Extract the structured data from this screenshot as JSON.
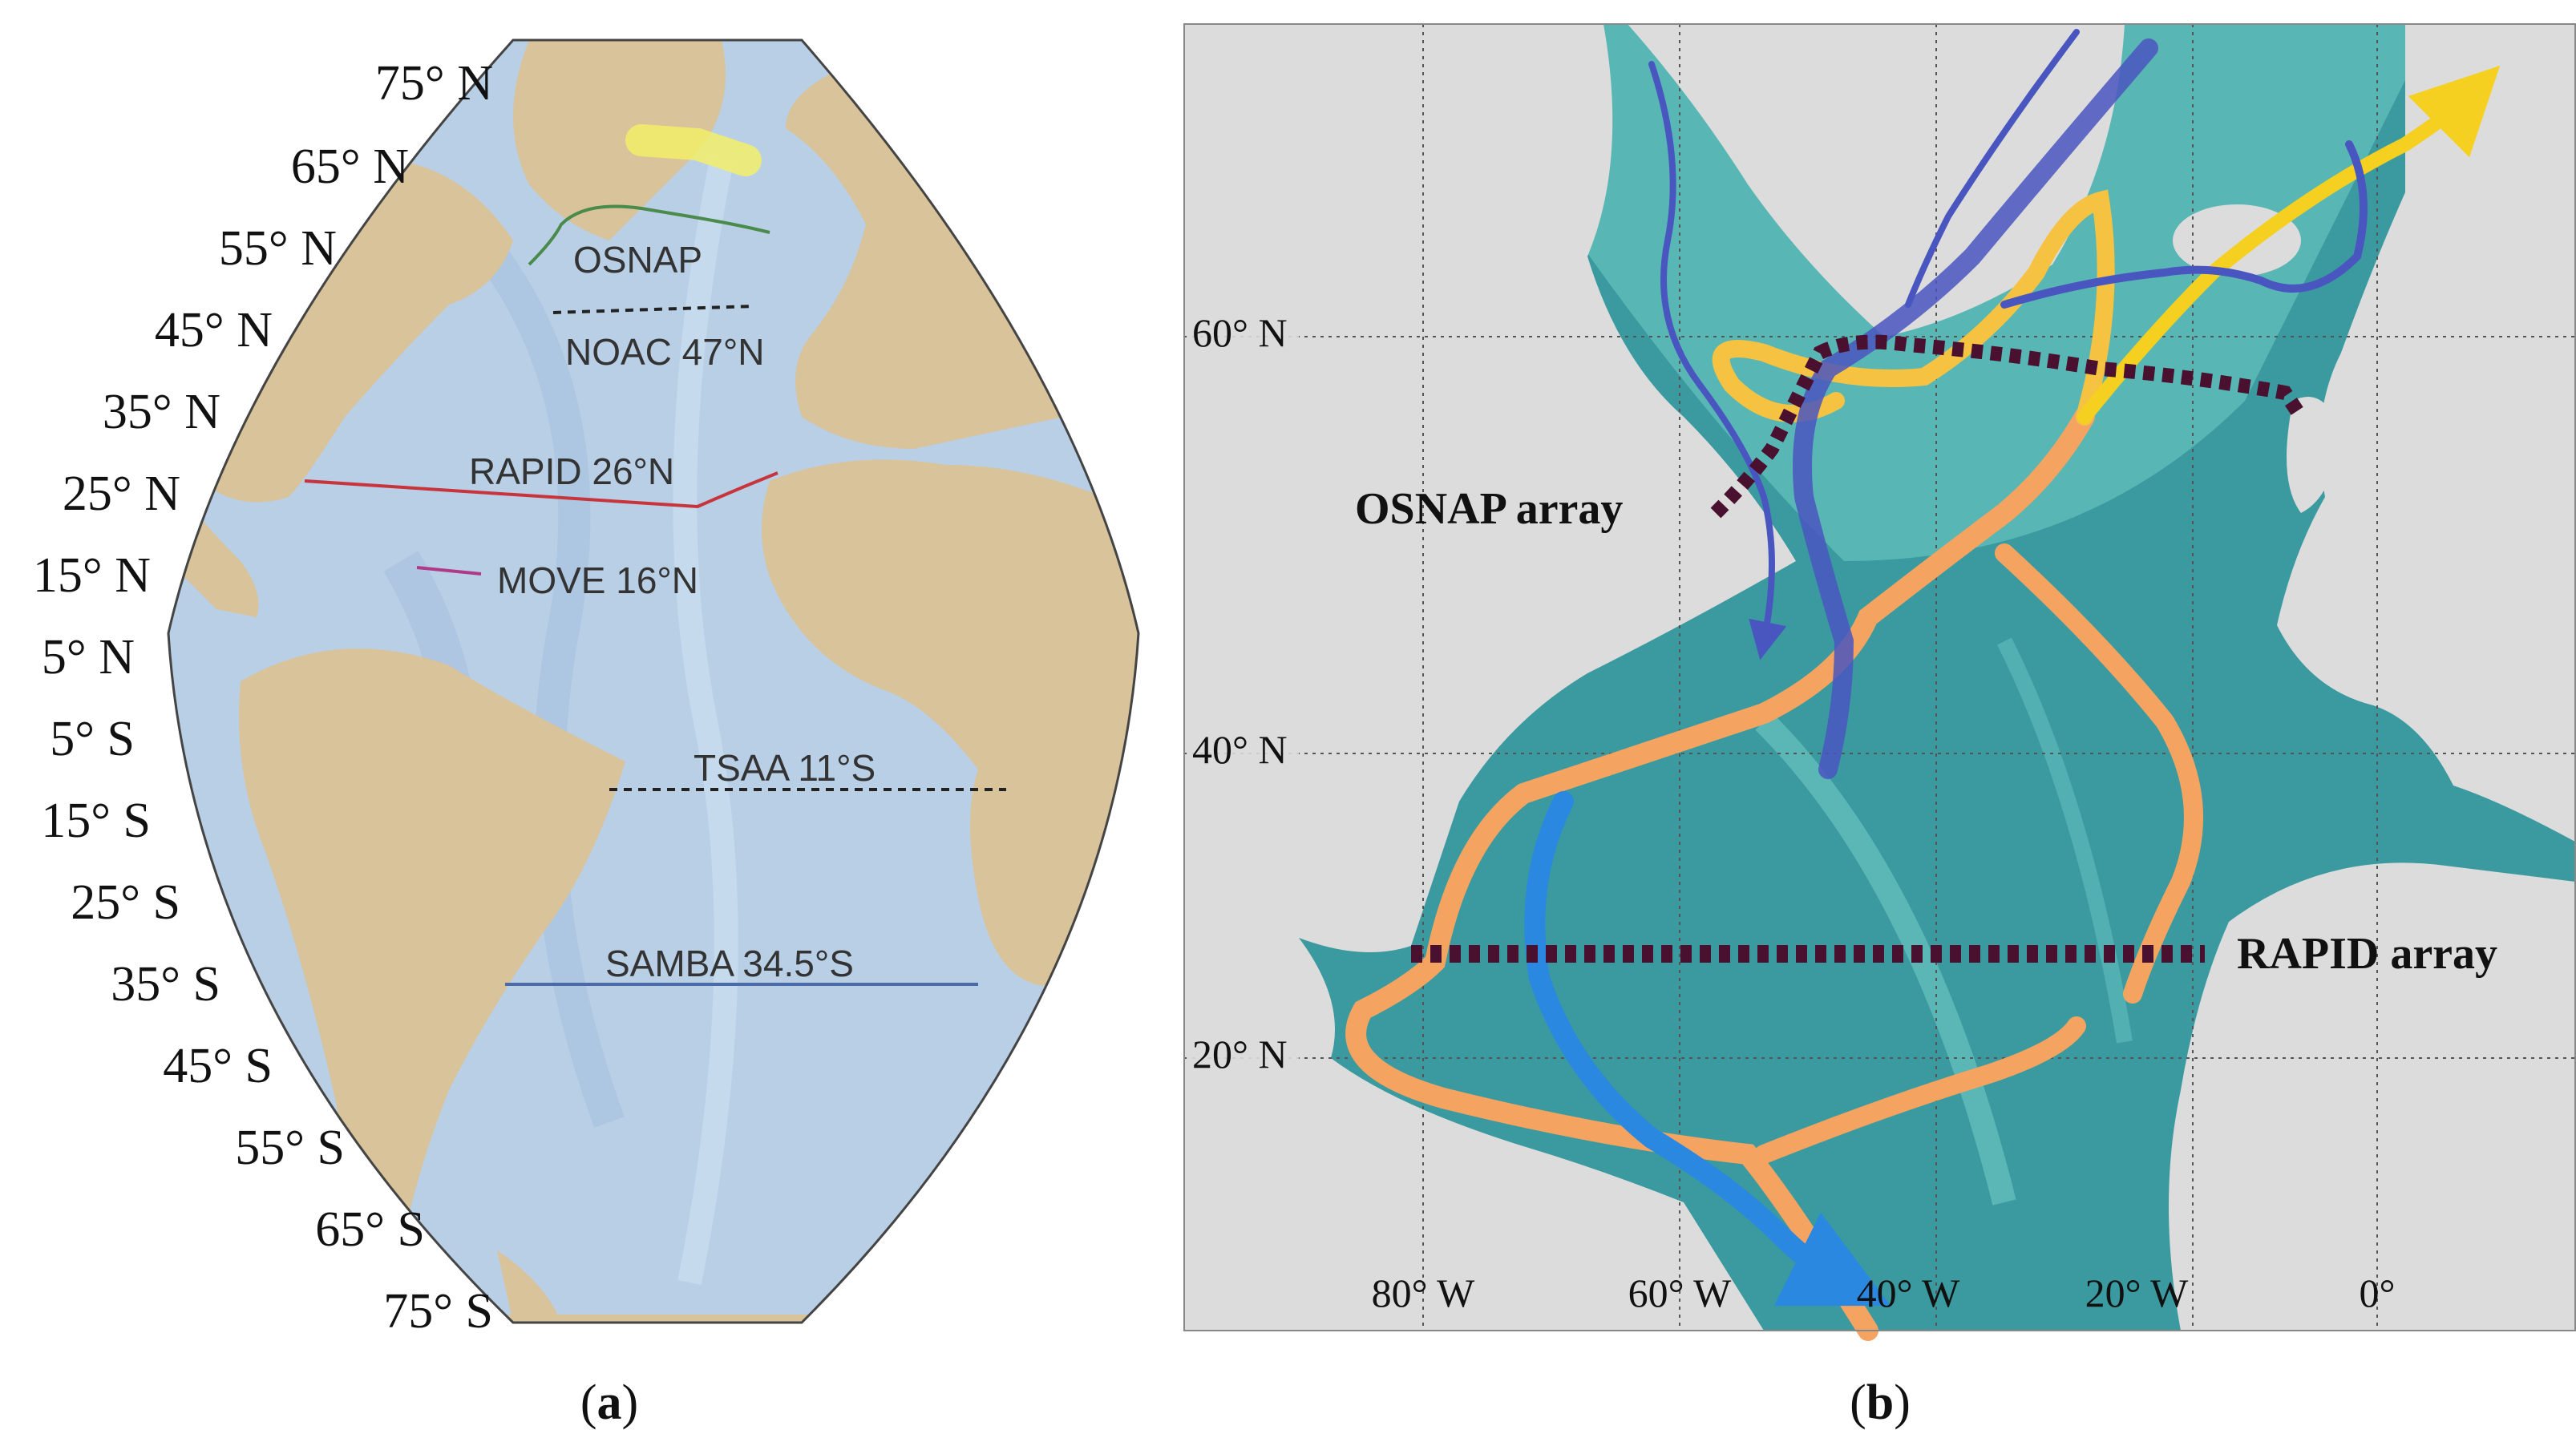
{
  "panel_a": {
    "caption_open": "(",
    "caption_letter": "a",
    "caption_close": ")",
    "latitudes": [
      "75° N",
      "65° N",
      "55° N",
      "45° N",
      "35° N",
      "25° N",
      "15° N",
      "5° N",
      "5° S",
      "15° S",
      "25° S",
      "35° S",
      "45° S",
      "55° S",
      "65° S",
      "75° S"
    ],
    "arrays": {
      "osnap": "OSNAP",
      "noac": "NOAC 47°N",
      "rapid": "RAPID 26°N",
      "move": "MOVE 16°N",
      "tsaa": "TSAA 11°S",
      "samba": "SAMBA 34.5°S"
    },
    "colors": {
      "ocean": "#b9cfe6",
      "land": "#d8c39a",
      "rapid": "#c8343c",
      "move": "#b03a8a",
      "osnap": "#4a8a4a",
      "samba": "#4a6aa8",
      "highlight": "#f2ee6a"
    }
  },
  "panel_b": {
    "caption_open": "(",
    "caption_letter": "b",
    "caption_close": ")",
    "lat_labels": [
      "60° N",
      "40° N",
      "20° N"
    ],
    "lon_labels": [
      "80° W",
      "60° W",
      "40° W",
      "20° W",
      "0°"
    ],
    "osnap_label": "OSNAP array",
    "rapid_label": "RAPID array",
    "colors": {
      "ocean": "#3a9aa0",
      "land": "#dcdcdc",
      "surface_flow": "#f4a460",
      "subpolar_flow": "#f5c242",
      "deep_flow": "#4a56c0",
      "western_boundary": "#2a88e0",
      "array_line": "#4a1030"
    }
  }
}
